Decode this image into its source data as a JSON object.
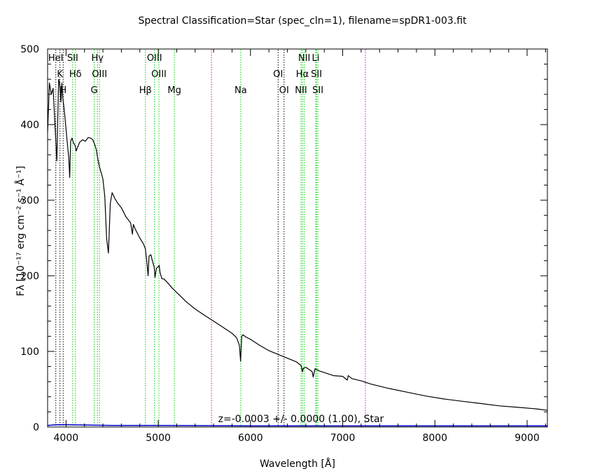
{
  "chart_data": {
    "type": "line",
    "title": "Spectral Classification=Star (spec_cln=1), filename=spDR1-003.fit",
    "xlabel": "Wavelength [Å]",
    "ylabel": "Fλ [10⁻¹⁷ erg cm⁻² s⁻¹ Å⁻¹]",
    "xlim": [
      3800,
      9220
    ],
    "ylim": [
      0,
      500
    ],
    "xticks": [
      4000,
      5000,
      6000,
      7000,
      8000,
      9000
    ],
    "yticks": [
      0,
      100,
      200,
      300,
      400,
      500
    ],
    "annotation": "z=-0.0003 +/- 0.0000 (1.00), Star",
    "series": [
      {
        "role": "spectrum",
        "color": "#000000",
        "x": [
          3800,
          3820,
          3840,
          3860,
          3880,
          3900,
          3920,
          3930,
          3945,
          3955,
          3965,
          3975,
          3990,
          4010,
          4030,
          4040,
          4050,
          4065,
          4080,
          4100,
          4110,
          4125,
          4150,
          4180,
          4210,
          4240,
          4270,
          4290,
          4310,
          4330,
          4340,
          4360,
          4380,
          4400,
          4420,
          4440,
          4460,
          4480,
          4500,
          4530,
          4560,
          4600,
          4650,
          4700,
          4720,
          4730,
          4750,
          4800,
          4840,
          4860,
          4875,
          4890,
          4900,
          4920,
          4940,
          4955,
          4965,
          4980,
          5000,
          5010,
          5020,
          5040,
          5060,
          5100,
          5150,
          5200,
          5250,
          5300,
          5400,
          5500,
          5600,
          5700,
          5800,
          5850,
          5880,
          5893,
          5905,
          5920,
          5950,
          6000,
          6100,
          6200,
          6300,
          6400,
          6500,
          6550,
          6563,
          6575,
          6600,
          6650,
          6670,
          6680,
          6700,
          6750,
          6800,
          6900,
          7000,
          7050,
          7060,
          7100,
          7200,
          7300,
          7500,
          7700,
          7900,
          8100,
          8300,
          8500,
          8700,
          8900,
          9100,
          9220
        ],
        "y": [
          390,
          455,
          440,
          448,
          400,
          352,
          460,
          455,
          430,
          455,
          435,
          425,
          408,
          380,
          355,
          330,
          378,
          382,
          376,
          372,
          365,
          370,
          377,
          380,
          378,
          383,
          382,
          380,
          374,
          366,
          358,
          345,
          337,
          328,
          305,
          250,
          230,
          296,
          310,
          302,
          296,
          290,
          278,
          270,
          255,
          268,
          262,
          250,
          242,
          236,
          220,
          200,
          226,
          228,
          218,
          212,
          198,
          210,
          212,
          214,
          204,
          196,
          196,
          191,
          184,
          178,
          172,
          166,
          156,
          148,
          140,
          132,
          124,
          118,
          108,
          87,
          120,
          122,
          119,
          116,
          108,
          101,
          96,
          91,
          86,
          81,
          73,
          78,
          79,
          75,
          73,
          66,
          77,
          74,
          72,
          68,
          67,
          62,
          68,
          64,
          61,
          57,
          51,
          46,
          41,
          37,
          34,
          31,
          28,
          26,
          24,
          22
        ]
      },
      {
        "role": "error",
        "color": "#0000cc",
        "x": [
          3800,
          3900,
          4000,
          4500,
          5000,
          6000,
          7000,
          8000,
          9000,
          9220
        ],
        "y": [
          2,
          3,
          3,
          2,
          2,
          1.5,
          1.5,
          1.5,
          1.5,
          1.5
        ]
      }
    ],
    "lines": [
      {
        "x": 3889,
        "row": 0,
        "label": "HeI",
        "color": "#000000"
      },
      {
        "x": 3934,
        "row": 1,
        "label": "K",
        "color": "#000000"
      },
      {
        "x": 3969,
        "row": 2,
        "label": "H",
        "color": "#000000"
      },
      {
        "x": 4072,
        "row": 0,
        "label": "SII",
        "color": "#00cc00"
      },
      {
        "x": 4102,
        "row": 1,
        "label": "Hδ",
        "color": "#00cc00"
      },
      {
        "x": 4305,
        "row": 2,
        "label": "G",
        "color": "#00cc00"
      },
      {
        "x": 4341,
        "row": 0,
        "label": "Hγ",
        "color": "#00cc00"
      },
      {
        "x": 4363,
        "row": 1,
        "label": "OIII",
        "color": "#00cc00"
      },
      {
        "x": 4861,
        "row": 2,
        "label": "Hβ",
        "color": "#00cc00"
      },
      {
        "x": 4959,
        "row": 0,
        "label": "OIII",
        "color": "#00cc00"
      },
      {
        "x": 5007,
        "row": 1,
        "label": "OIII",
        "color": "#00cc00"
      },
      {
        "x": 5175,
        "row": 2,
        "label": "Mg",
        "color": "#00cc00"
      },
      {
        "x": 5577,
        "row": -1,
        "label": "",
        "color": "#cc00cc"
      },
      {
        "x": 5894,
        "row": 2,
        "label": "Na",
        "color": "#00cc00"
      },
      {
        "x": 6300,
        "row": 1,
        "label": "OI",
        "color": "#000000"
      },
      {
        "x": 6364,
        "row": 2,
        "label": "OI",
        "color": "#000000"
      },
      {
        "x": 6548,
        "row": 2,
        "label": "NII",
        "color": "#00cc00"
      },
      {
        "x": 6563,
        "row": 1,
        "label": "Hα",
        "color": "#00cc00"
      },
      {
        "x": 6583,
        "row": 0,
        "label": "NII",
        "color": "#00cc00"
      },
      {
        "x": 6707,
        "row": 0,
        "label": "Li",
        "color": "#00cc00"
      },
      {
        "x": 6716,
        "row": 1,
        "label": "SII",
        "color": "#00cc00"
      },
      {
        "x": 6731,
        "row": 2,
        "label": "SII",
        "color": "#00cc00"
      },
      {
        "x": 7246,
        "row": -1,
        "label": "",
        "color": "#cc00cc"
      }
    ]
  }
}
